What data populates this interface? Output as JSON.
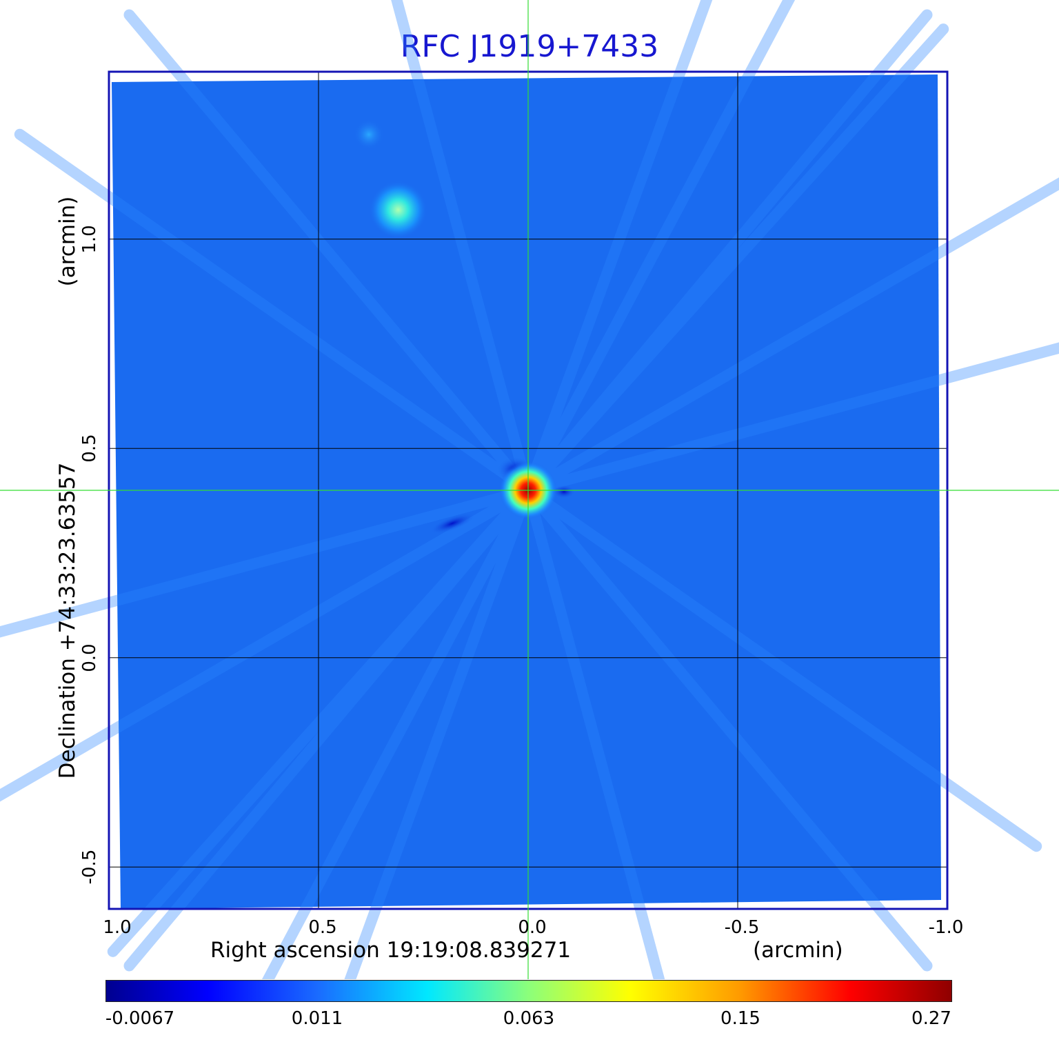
{
  "chart_data": {
    "type": "heatmap",
    "title": "RFC J1919+7433",
    "xlabel": "Right ascension  19:19:08.839271",
    "xlabel_unit": "(arcmin)",
    "ylabel": "Declination  +74:33:23.63557",
    "ylabel_unit": "(arcmin)",
    "xlim": [
      1.0,
      -1.0
    ],
    "ylim": [
      -0.6,
      1.4
    ],
    "x_ticks": [
      "1.0",
      "0.5",
      "0.0",
      "-0.5",
      "-1.0"
    ],
    "x_tick_values": [
      1.0,
      0.5,
      0.0,
      -0.5,
      -1.0
    ],
    "y_ticks": [
      "-0.5",
      "0.0",
      "0.5",
      "1.0"
    ],
    "y_tick_values": [
      -0.5,
      0.0,
      0.5,
      1.0
    ],
    "grid": true,
    "crosshair": {
      "x": 0.0,
      "y": 0.4
    },
    "colormap": "jet",
    "colorbar_ticks": [
      "-0.0067",
      "0.011",
      "0.063",
      "0.15",
      "0.27"
    ],
    "colorbar_tick_values": [
      -0.0067,
      0.011,
      0.063,
      0.15,
      0.27
    ],
    "colors": {
      "title": "#1717d0",
      "frame": "#1414b4",
      "background": "#1a6bf0",
      "crosshair": "#33dd33",
      "grid": "#000000"
    },
    "sources": [
      {
        "x": 0.0,
        "y": 0.4,
        "peak": 0.27
      },
      {
        "x": 0.31,
        "y": 1.07,
        "peak": 0.05
      },
      {
        "x": 0.38,
        "y": 1.25,
        "peak": 0.015
      }
    ]
  }
}
